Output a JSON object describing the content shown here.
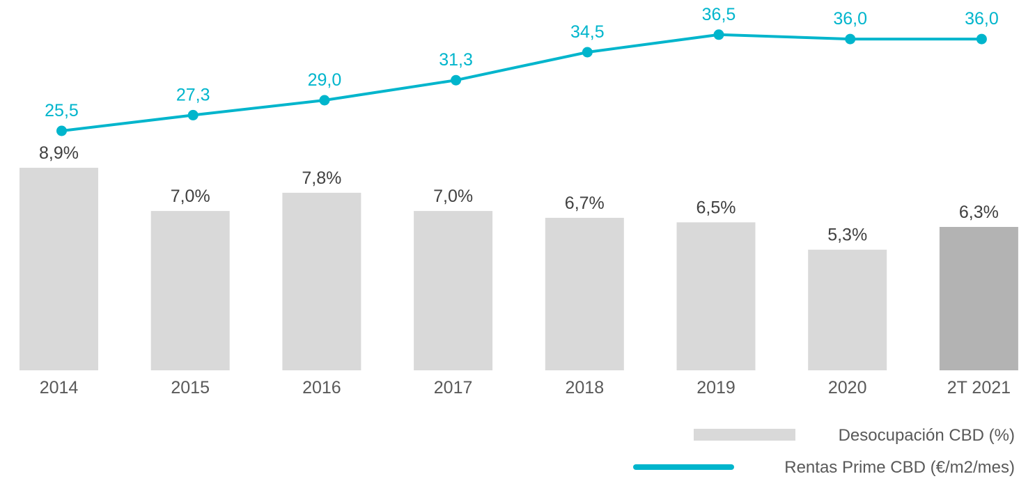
{
  "chart_data": {
    "type": "bar",
    "categories": [
      "2014",
      "2015",
      "2016",
      "2017",
      "2018",
      "2019",
      "2020",
      "2T 2021"
    ],
    "series": [
      {
        "name": "Desocupación CBD (%)",
        "kind": "bar",
        "values": [
          8.9,
          7.0,
          7.8,
          7.0,
          6.7,
          6.5,
          5.3,
          6.3
        ],
        "labels": [
          "8,9%",
          "7,0%",
          "7,8%",
          "7,0%",
          "6,7%",
          "6,5%",
          "5,3%",
          "6,3%"
        ],
        "color": "#d9d9d9",
        "highlight_color": "#b3b3b3",
        "highlight_index": 7
      },
      {
        "name": "Rentas Prime CBD (€/m2/mes)",
        "kind": "line",
        "values": [
          25.5,
          27.3,
          29.0,
          31.3,
          34.5,
          36.5,
          36.0,
          36.0
        ],
        "labels": [
          "25,5",
          "27,3",
          "29,0",
          "31,3",
          "34,5",
          "36,5",
          "36,0",
          "36,0"
        ],
        "color": "#00b5cc"
      }
    ],
    "title": "",
    "xlabel": "",
    "ylabel": "",
    "grid": false,
    "legend": "bottom-right",
    "legend_labels": {
      "bars": "Desocupación CBD (%)",
      "line": "Rentas Prime CBD (€/m2/mes)"
    },
    "colors": {
      "axis_text": "#595959",
      "bar_label_text": "#404040"
    }
  }
}
